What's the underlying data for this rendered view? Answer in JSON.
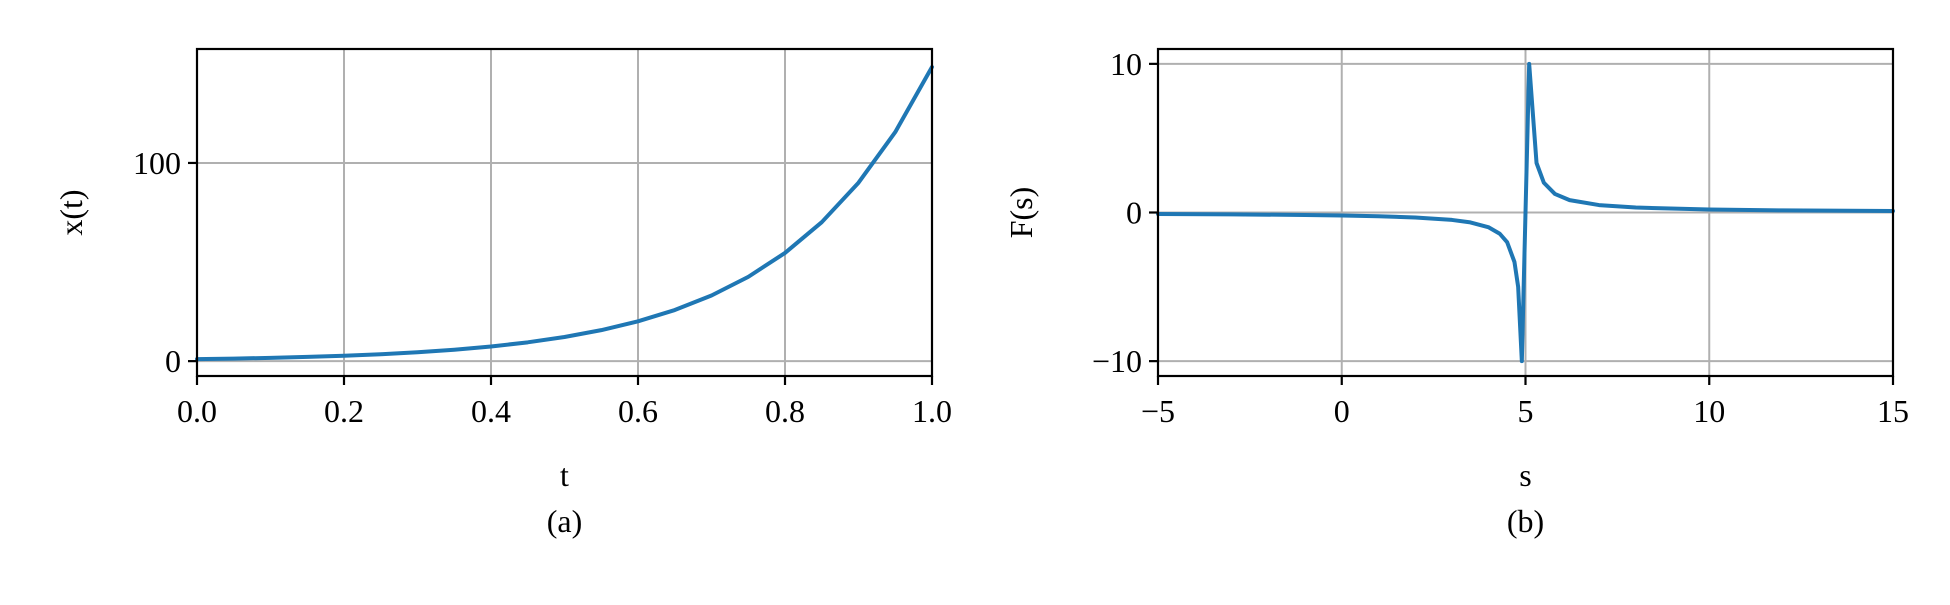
{
  "chart_data": [
    {
      "type": "line",
      "panel_caption": "(a)",
      "xlabel": "t",
      "ylabel": "x(t)",
      "xlim": [
        0,
        1
      ],
      "ylim": [
        -7.5,
        157.5
      ],
      "xticks": [
        0.0,
        0.2,
        0.4,
        0.6,
        0.8,
        1.0
      ],
      "xtick_labels": [
        "0.0",
        "0.2",
        "0.4",
        "0.6",
        "0.8",
        "1.0"
      ],
      "yticks": [
        0,
        100
      ],
      "ytick_labels": [
        "0",
        "100"
      ],
      "grid": true,
      "line_color": "#1f77b4",
      "series": [
        {
          "x": [
            0.0,
            0.05,
            0.1,
            0.15,
            0.2,
            0.25,
            0.3,
            0.35,
            0.4,
            0.45,
            0.5,
            0.55,
            0.6,
            0.65,
            0.7,
            0.75,
            0.8,
            0.85,
            0.9,
            0.95,
            1.0
          ],
          "y": [
            1.0,
            1.28,
            1.65,
            2.12,
            2.72,
            3.49,
            4.48,
            5.75,
            7.39,
            9.49,
            12.18,
            15.64,
            20.09,
            25.79,
            33.12,
            42.52,
            54.6,
            70.11,
            90.02,
            115.58,
            148.41
          ]
        }
      ]
    },
    {
      "type": "line",
      "panel_caption": "(b)",
      "xlabel": "s",
      "ylabel": "F(s)",
      "xlim": [
        -5,
        15
      ],
      "ylim": [
        -11,
        11
      ],
      "xticks": [
        -5,
        0,
        5,
        10,
        15
      ],
      "xtick_labels": [
        "−5",
        "0",
        "5",
        "10",
        "15"
      ],
      "yticks": [
        -10,
        0,
        10
      ],
      "ytick_labels": [
        "−10",
        "0",
        "10"
      ],
      "grid": true,
      "line_color": "#1f77b4",
      "series": [
        {
          "x": [
            -5,
            -3,
            -1,
            0,
            1,
            2,
            3,
            3.5,
            4.0,
            4.3,
            4.5,
            4.7,
            4.8,
            4.9,
            5.1,
            5.3,
            5.5,
            5.8,
            6.2,
            7,
            8,
            10,
            12,
            15
          ],
          "y": [
            -0.1,
            -0.125,
            -0.167,
            -0.2,
            -0.25,
            -0.333,
            -0.5,
            -0.667,
            -1.0,
            -1.43,
            -2.0,
            -3.33,
            -5.0,
            -10.0,
            10.0,
            3.33,
            2.0,
            1.25,
            0.833,
            0.5,
            0.333,
            0.2,
            0.143,
            0.1
          ]
        }
      ]
    }
  ]
}
